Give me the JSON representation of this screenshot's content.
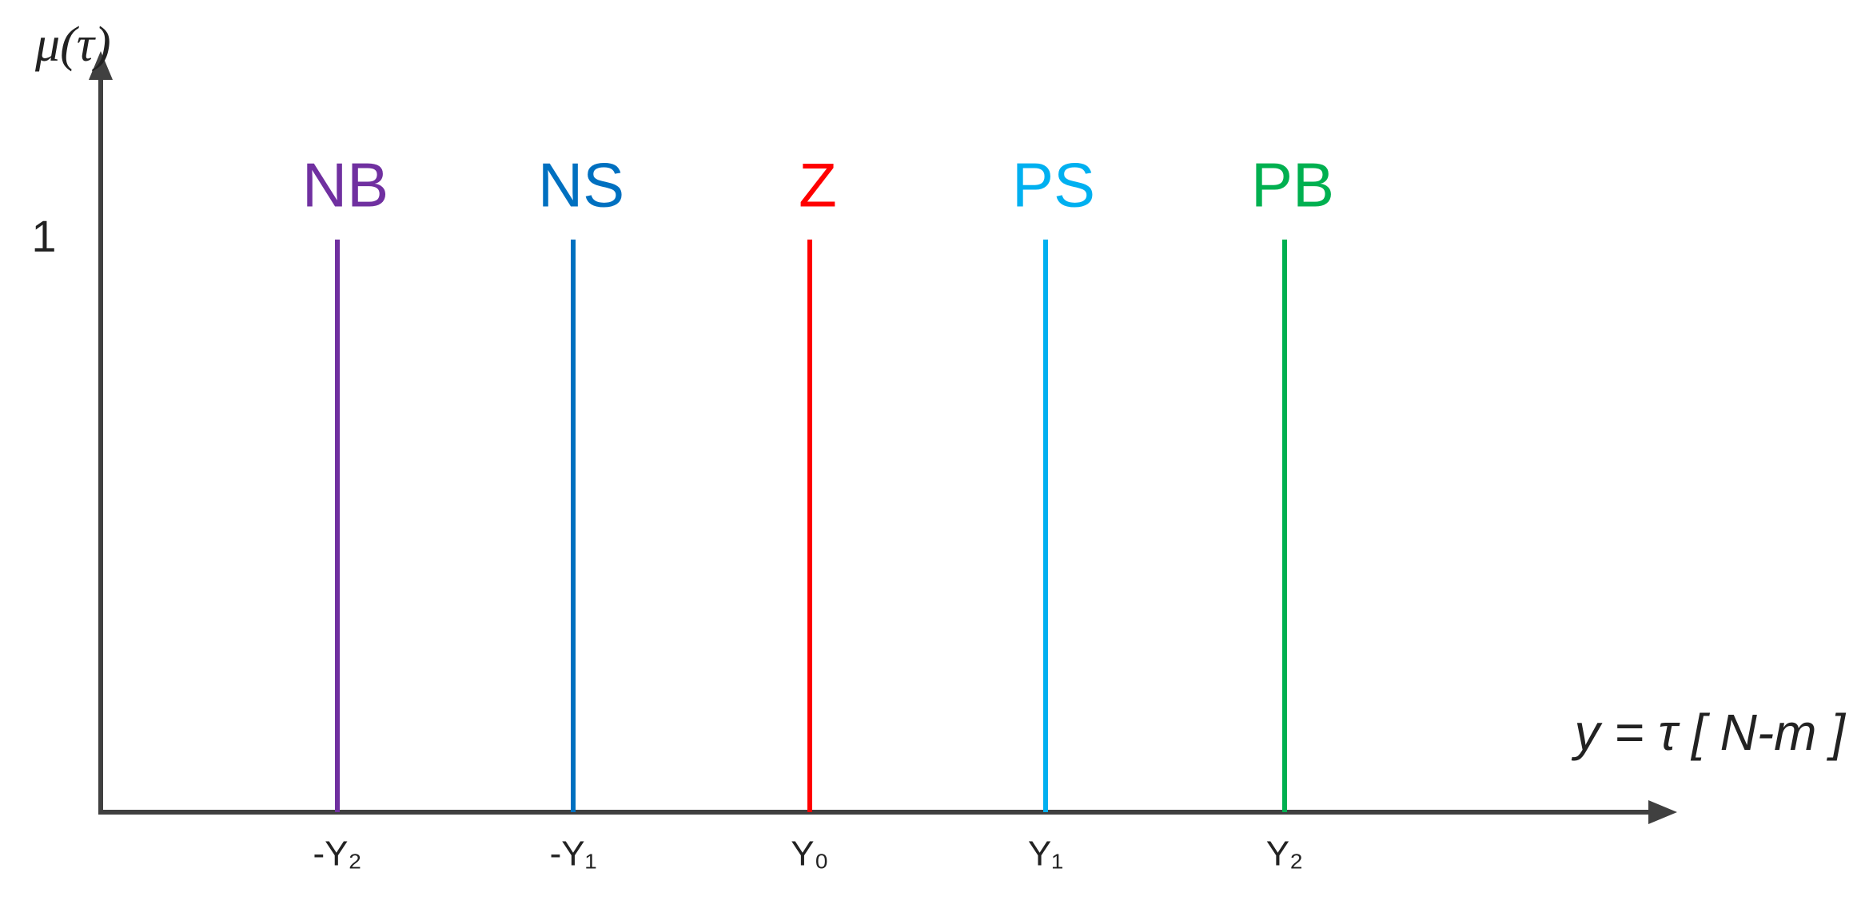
{
  "y_axis_label": "μ(τ)",
  "x_axis_label": "y = τ  [ N-m ]",
  "y_tick": 1,
  "singletons": [
    {
      "name": "NB",
      "x_label": "-Y₂",
      "membership": 1,
      "color": "#7030a0"
    },
    {
      "name": "NS",
      "x_label": "-Y₁",
      "membership": 1,
      "color": "#0070c0"
    },
    {
      "name": "Z",
      "x_label": "Y₀",
      "membership": 1,
      "color": "#ff0000"
    },
    {
      "name": "PS",
      "x_label": "Y₁",
      "membership": 1,
      "color": "#00b0f0"
    },
    {
      "name": "PB",
      "x_label": "Y₂",
      "membership": 1,
      "color": "#00b050"
    }
  ]
}
